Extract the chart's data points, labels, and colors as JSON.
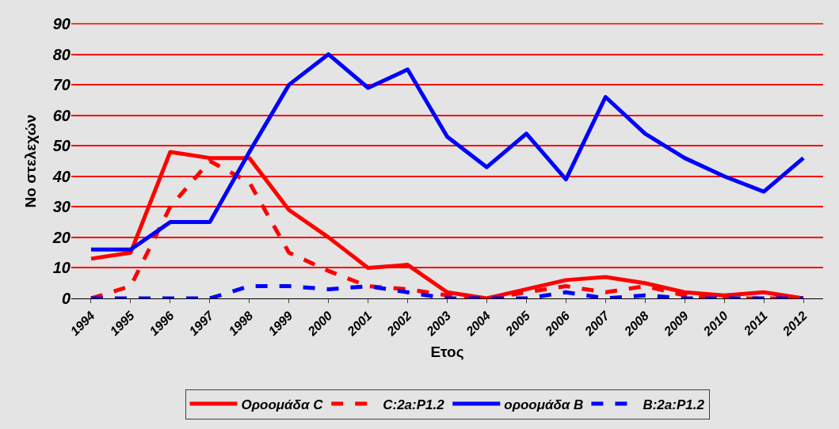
{
  "chart_data": {
    "type": "line",
    "xlabel": "Ετος",
    "ylabel": "Νο στελεχών",
    "categories": [
      "1994",
      "1995",
      "1996",
      "1997",
      "1998",
      "1999",
      "2000",
      "2001",
      "2002",
      "2003",
      "2004",
      "2005",
      "2006",
      "2007",
      "2008",
      "2009",
      "2010",
      "2011",
      "2012"
    ],
    "series": [
      {
        "name": "Οροομάδα C",
        "color": "#ff0000",
        "line_style": "solid",
        "values": [
          13,
          15,
          48,
          46,
          46,
          29,
          20,
          10,
          11,
          2,
          0,
          3,
          6,
          7,
          5,
          2,
          1,
          2,
          0
        ]
      },
      {
        "name": "C:2a:P1.2",
        "color": "#ff0000",
        "line_style": "dashed",
        "values": [
          0,
          4,
          30,
          45,
          38,
          15,
          9,
          4,
          3,
          1,
          0,
          2,
          4,
          2,
          4,
          1,
          0,
          0,
          0
        ]
      },
      {
        "name": "οροομάδα Β",
        "color": "#0000ff",
        "line_style": "solid",
        "values": [
          16,
          16,
          25,
          25,
          48,
          70,
          80,
          69,
          75,
          53,
          43,
          54,
          39,
          66,
          54,
          46,
          40,
          35,
          46
        ]
      },
      {
        "name": "B:2a:P1.2",
        "color": "#0000ff",
        "line_style": "dashed",
        "values": [
          0,
          0,
          0,
          0,
          4,
          4,
          3,
          4,
          2,
          0,
          0,
          0,
          2,
          0,
          1,
          0,
          0,
          0,
          0
        ]
      }
    ],
    "ylim": [
      0,
      90
    ],
    "yticks": [
      0,
      10,
      20,
      30,
      40,
      50,
      60,
      70,
      80,
      90
    ],
    "grid": "y",
    "legend": "bottom",
    "marker": "none"
  }
}
